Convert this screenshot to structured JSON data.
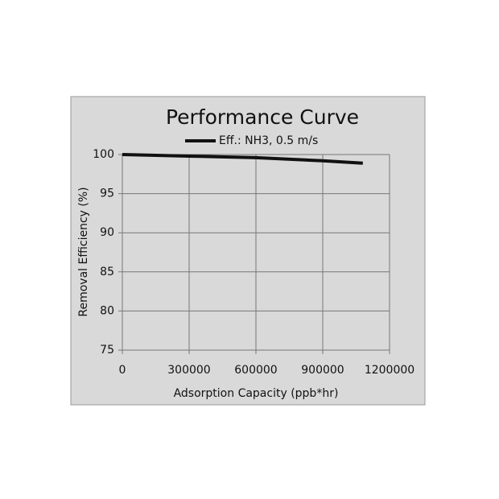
{
  "chart_data": {
    "type": "line",
    "title": "Performance Curve",
    "x_label": "Adsorption Capacity (ppb*hr)",
    "y_label": "Removal Efficiency (%)",
    "x": [
      0,
      300000,
      600000,
      900000,
      1080000
    ],
    "series": [
      {
        "name": "Eff.: NH3, 0.5 m/s",
        "color": "#111111",
        "values": [
          100,
          99.8,
          99.6,
          99.2,
          98.9
        ]
      }
    ],
    "xlim": [
      0,
      1200000
    ],
    "xticks": [
      0,
      300000,
      600000,
      900000,
      1200000
    ],
    "ylim": [
      75,
      100
    ],
    "yticks": [
      75,
      80,
      85,
      90,
      95,
      100
    ],
    "grid": true
  }
}
